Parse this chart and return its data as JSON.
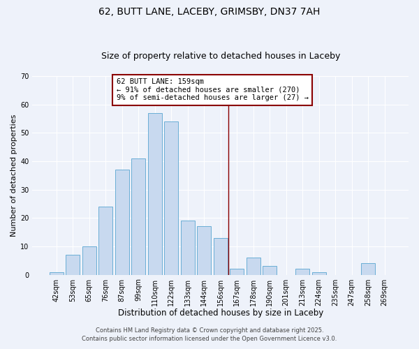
{
  "title": "62, BUTT LANE, LACEBY, GRIMSBY, DN37 7AH",
  "subtitle": "Size of property relative to detached houses in Laceby",
  "xlabel": "Distribution of detached houses by size in Laceby",
  "ylabel": "Number of detached properties",
  "bar_labels": [
    "42sqm",
    "53sqm",
    "65sqm",
    "76sqm",
    "87sqm",
    "99sqm",
    "110sqm",
    "122sqm",
    "133sqm",
    "144sqm",
    "156sqm",
    "167sqm",
    "178sqm",
    "190sqm",
    "201sqm",
    "213sqm",
    "224sqm",
    "235sqm",
    "247sqm",
    "258sqm",
    "269sqm"
  ],
  "bar_values": [
    1,
    7,
    10,
    24,
    37,
    41,
    57,
    54,
    19,
    17,
    13,
    2,
    6,
    3,
    0,
    2,
    1,
    0,
    0,
    4,
    0
  ],
  "bar_color": "#c8d9ef",
  "bar_edge_color": "#6aaed6",
  "background_color": "#eef2fa",
  "grid_color": "#ffffff",
  "ylim": [
    0,
    70
  ],
  "yticks": [
    0,
    10,
    20,
    30,
    40,
    50,
    60,
    70
  ],
  "vline_color": "#8b0000",
  "annotation_text": "62 BUTT LANE: 159sqm\n← 91% of detached houses are smaller (270)\n9% of semi-detached houses are larger (27) →",
  "annotation_box_edge": "#8b0000",
  "footer1": "Contains HM Land Registry data © Crown copyright and database right 2025.",
  "footer2": "Contains public sector information licensed under the Open Government Licence v3.0.",
  "title_fontsize": 10,
  "subtitle_fontsize": 9,
  "xlabel_fontsize": 8.5,
  "ylabel_fontsize": 8,
  "tick_fontsize": 7,
  "annotation_fontsize": 7.5,
  "footer_fontsize": 6
}
